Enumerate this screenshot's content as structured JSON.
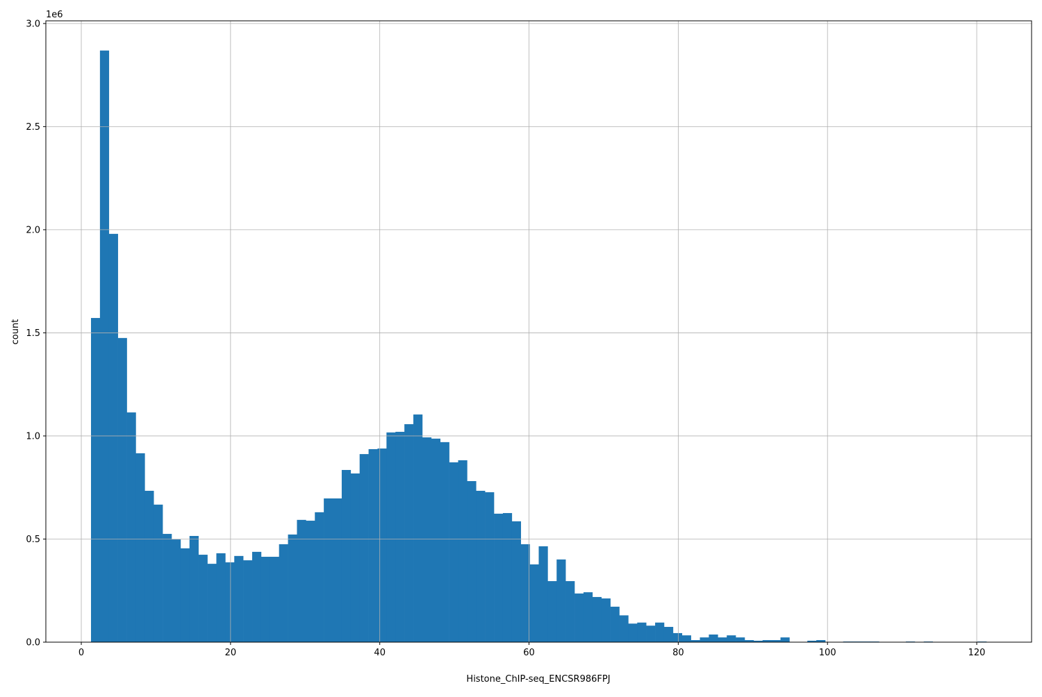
{
  "chart_data": {
    "type": "bar",
    "subtype": "histogram",
    "title": "",
    "xlabel": "Histone_ChIP-seq_ENCSR986FPJ",
    "ylabel": "count",
    "y_offset_label": "1e6",
    "xlim": [
      -4.75,
      127.35
    ],
    "ylim": [
      0,
      3013000
    ],
    "grid": true,
    "bar_color": "#1f77b4",
    "x_ticks": [
      0,
      20,
      40,
      60,
      80,
      100,
      120
    ],
    "x_tick_labels": [
      "0",
      "20",
      "40",
      "60",
      "80",
      "100",
      "120"
    ],
    "y_ticks": [
      0,
      500000,
      1000000,
      1500000,
      2000000,
      2500000,
      3000000
    ],
    "y_tick_labels": [
      "0.0",
      "0.5",
      "1.0",
      "1.5",
      "2.0",
      "2.5",
      "3.0"
    ],
    "bin_start": 1.3,
    "bin_width": 1.2,
    "values": [
      1572000,
      2869000,
      1980000,
      1475000,
      1114000,
      916000,
      734000,
      667000,
      525000,
      498000,
      455000,
      515000,
      424000,
      380000,
      431000,
      387000,
      418000,
      397000,
      438000,
      414000,
      414000,
      475000,
      522000,
      593000,
      589000,
      630000,
      697000,
      697000,
      835000,
      818000,
      912000,
      936000,
      939000,
      1017000,
      1020000,
      1057000,
      1104000,
      993000,
      987000,
      970000,
      872000,
      882000,
      781000,
      734000,
      727000,
      623000,
      626000,
      586000,
      475000,
      377000,
      465000,
      296000,
      401000,
      296000,
      236000,
      242000,
      219000,
      212000,
      172000,
      130000,
      90000,
      95000,
      80000,
      95000,
      74000,
      44000,
      33000,
      10000,
      23000,
      37000,
      23000,
      33000,
      23000,
      10000,
      7000,
      10000,
      10000,
      23000,
      0,
      0,
      7000,
      10000,
      0,
      0,
      3000,
      3000,
      3000,
      3000,
      0,
      0,
      0,
      3000,
      0,
      3000,
      0,
      0,
      0,
      0,
      0,
      3000
    ]
  }
}
